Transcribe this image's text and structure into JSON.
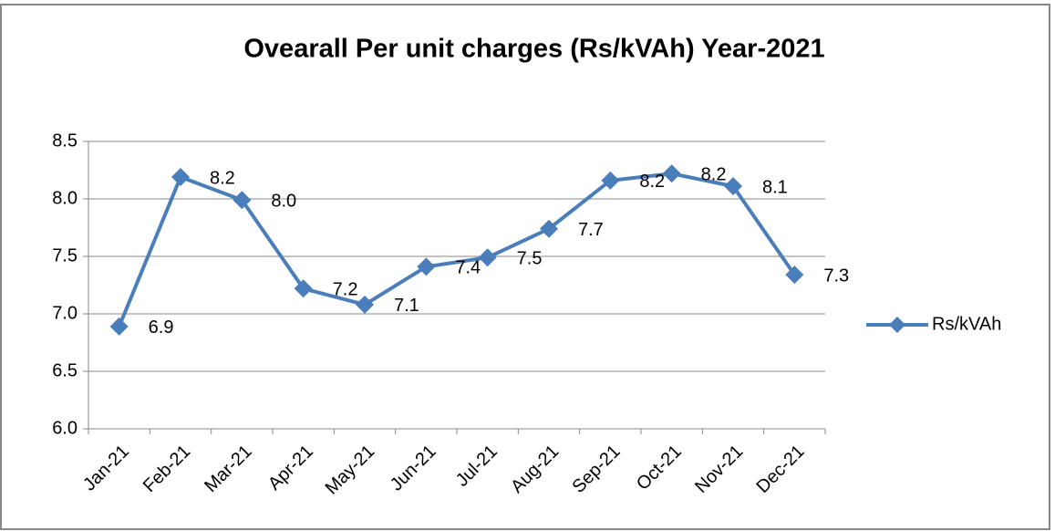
{
  "chart_data": {
    "type": "line",
    "title": "Ovearall Per unit charges (Rs/kVAh) Year-2021",
    "categories": [
      "Jan-21",
      "Feb-21",
      "Mar-21",
      "Apr-21",
      "May-21",
      "Jun-21",
      "Jul-21",
      "Aug-21",
      "Sep-21",
      "Oct-21",
      "Nov-21",
      "Dec-21"
    ],
    "series": [
      {
        "name": "Rs/kVAh",
        "color": "#4a7ebb",
        "values": [
          6.89,
          8.19,
          7.99,
          7.22,
          7.08,
          7.41,
          7.49,
          7.74,
          8.16,
          8.22,
          8.11,
          7.34
        ],
        "value_labels": [
          "6.9",
          "8.2",
          "8.0",
          "7.2",
          "7.1",
          "7.4",
          "7.5",
          "7.7",
          "8.2",
          "8.2",
          "8.1",
          "7.3"
        ]
      }
    ],
    "ylim": [
      6,
      8.5
    ],
    "yticks": [
      {
        "value": 6,
        "label": "6.0"
      },
      6.5,
      {
        "value": 7,
        "label": "7.0"
      },
      7.5,
      {
        "value": 8,
        "label": "8.0"
      },
      8.5
    ],
    "grid": true,
    "legend": "right"
  }
}
